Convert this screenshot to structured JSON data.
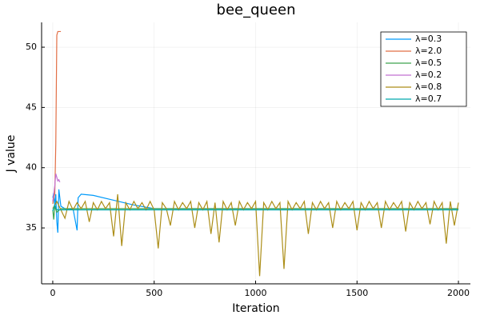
{
  "chart_data": {
    "type": "line",
    "title": "bee_queen",
    "x_label": "Iteration",
    "y_label": "J value",
    "xlim": [
      -55,
      2059
    ],
    "ylim": [
      30.36,
      52.06
    ],
    "xticks": [
      0,
      500,
      1000,
      1500,
      2000
    ],
    "yticks": [
      35,
      40,
      45,
      50
    ],
    "grid": true,
    "legend": "top-right",
    "series": [
      {
        "name": "λ=0.3",
        "color": "#009AFA",
        "x": [
          0,
          5,
          10,
          15,
          20,
          25,
          30,
          40,
          60,
          80,
          100,
          120,
          125,
          140,
          200,
          300,
          400,
          500,
          1000,
          1500,
          2000
        ],
        "values": [
          37.5,
          37.9,
          36.8,
          37.8,
          35.5,
          34.6,
          38.2,
          36.8,
          36.6,
          36.5,
          36.6,
          34.8,
          37.5,
          37.8,
          37.7,
          37.3,
          36.9,
          36.6,
          36.6,
          36.6,
          36.6
        ]
      },
      {
        "name": "λ=2.0",
        "color": "#E26F46",
        "x": [
          0,
          5,
          10,
          15,
          20,
          25,
          30,
          40
        ],
        "values": [
          37.0,
          37.5,
          37.8,
          42,
          51.0,
          51.3,
          51.3,
          51.3
        ]
      },
      {
        "name": "λ=0.5",
        "color": "#3EA44E",
        "x": [
          0,
          5,
          10,
          20,
          40,
          100,
          500,
          2000
        ],
        "values": [
          36.5,
          35.7,
          36.8,
          36.3,
          36.6,
          36.6,
          36.6,
          36.6
        ]
      },
      {
        "name": "λ=0.2",
        "color": "#C271D2",
        "x": [
          0,
          5,
          10,
          15,
          20,
          25,
          30,
          35
        ],
        "values": [
          37.2,
          37.8,
          38.5,
          39.5,
          39.2,
          38.9,
          39.0,
          38.8
        ]
      },
      {
        "name": "λ=0.8",
        "color": "#AC8E18",
        "x": [
          0,
          20,
          40,
          60,
          80,
          100,
          120,
          140,
          160,
          180,
          200,
          220,
          240,
          260,
          280,
          300,
          320,
          340,
          360,
          380,
          400,
          420,
          440,
          460,
          480,
          500,
          520,
          540,
          560,
          580,
          600,
          620,
          640,
          660,
          680,
          700,
          720,
          740,
          760,
          780,
          800,
          820,
          840,
          860,
          880,
          900,
          920,
          940,
          960,
          980,
          1000,
          1020,
          1040,
          1060,
          1080,
          1100,
          1120,
          1140,
          1160,
          1180,
          1200,
          1220,
          1240,
          1260,
          1280,
          1300,
          1320,
          1340,
          1360,
          1380,
          1400,
          1420,
          1440,
          1460,
          1480,
          1500,
          1520,
          1540,
          1560,
          1580,
          1600,
          1620,
          1640,
          1660,
          1680,
          1700,
          1720,
          1740,
          1760,
          1780,
          1800,
          1820,
          1840,
          1860,
          1880,
          1900,
          1920,
          1940,
          1960,
          1980,
          2000
        ],
        "values": [
          36.6,
          37.2,
          36.5,
          35.8,
          37.2,
          36.5,
          37.1,
          36.6,
          37.2,
          35.5,
          37.1,
          36.5,
          37.2,
          36.6,
          37.1,
          34.3,
          37.8,
          33.5,
          37.1,
          36.5,
          37.2,
          36.6,
          37.1,
          36.5,
          37.2,
          36.5,
          33.3,
          37.1,
          36.6,
          35.2,
          37.2,
          36.5,
          37.1,
          36.6,
          37.2,
          35.0,
          37.1,
          36.5,
          37.2,
          34.5,
          37.1,
          33.8,
          37.2,
          36.5,
          37.1,
          35.2,
          37.2,
          36.5,
          37.1,
          36.6,
          37.2,
          31.0,
          37.1,
          36.5,
          37.2,
          36.6,
          37.1,
          31.6,
          37.2,
          36.5,
          37.1,
          36.6,
          37.2,
          34.5,
          37.1,
          36.5,
          37.2,
          36.6,
          37.1,
          35.0,
          37.2,
          36.5,
          37.1,
          36.6,
          37.2,
          34.8,
          37.1,
          36.5,
          37.2,
          36.6,
          37.1,
          35.0,
          37.2,
          36.5,
          37.1,
          36.6,
          37.2,
          34.7,
          37.1,
          36.5,
          37.2,
          36.6,
          37.1,
          35.3,
          37.2,
          36.5,
          37.1,
          33.7,
          37.2,
          35.2,
          37.1
        ]
      },
      {
        "name": "λ=0.7",
        "color": "#00A9AD",
        "x": [
          0,
          10,
          20,
          50,
          2000
        ],
        "values": [
          36.4,
          36.9,
          36.5,
          36.5,
          36.5
        ]
      }
    ]
  }
}
